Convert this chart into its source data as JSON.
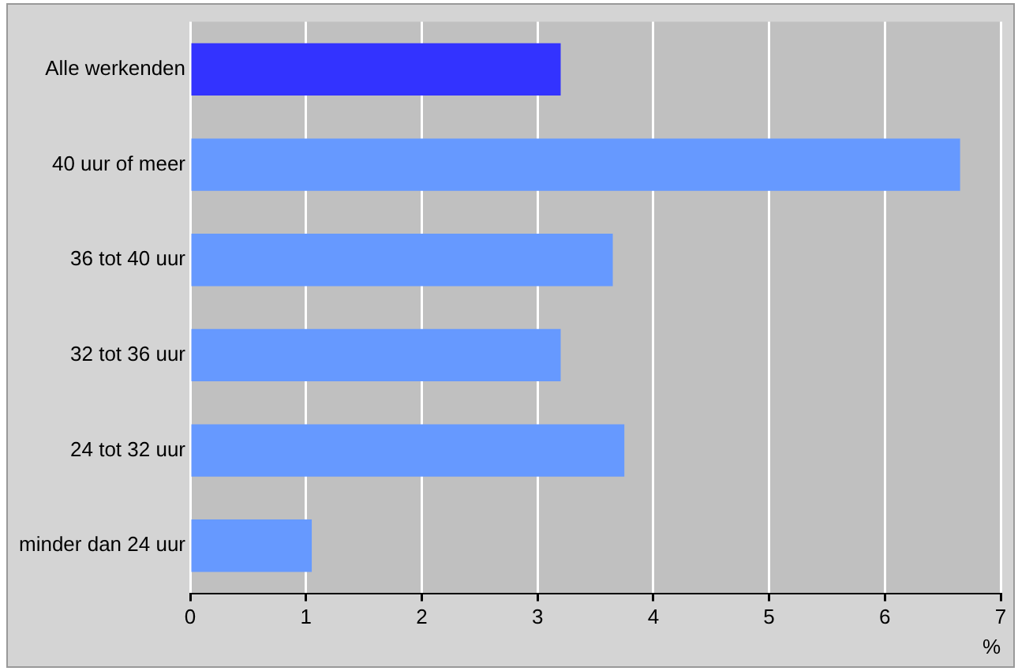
{
  "chart_data": {
    "type": "bar",
    "orientation": "horizontal",
    "xlabel": "%",
    "categories": [
      "Alle werkenden",
      "40 uur of meer",
      "36 tot 40 uur",
      "32 tot 36 uur",
      "24 tot 32 uur",
      "minder dan 24 uur"
    ],
    "values": [
      3.2,
      6.65,
      3.65,
      3.2,
      3.75,
      1.05
    ],
    "colors": [
      "#3333ff",
      "#6699ff",
      "#6699ff",
      "#6699ff",
      "#6699ff",
      "#6699ff"
    ],
    "xlim": [
      0,
      7
    ],
    "xticks": [
      0,
      1,
      2,
      3,
      4,
      5,
      6,
      7
    ],
    "grid": "x",
    "legend": false
  }
}
